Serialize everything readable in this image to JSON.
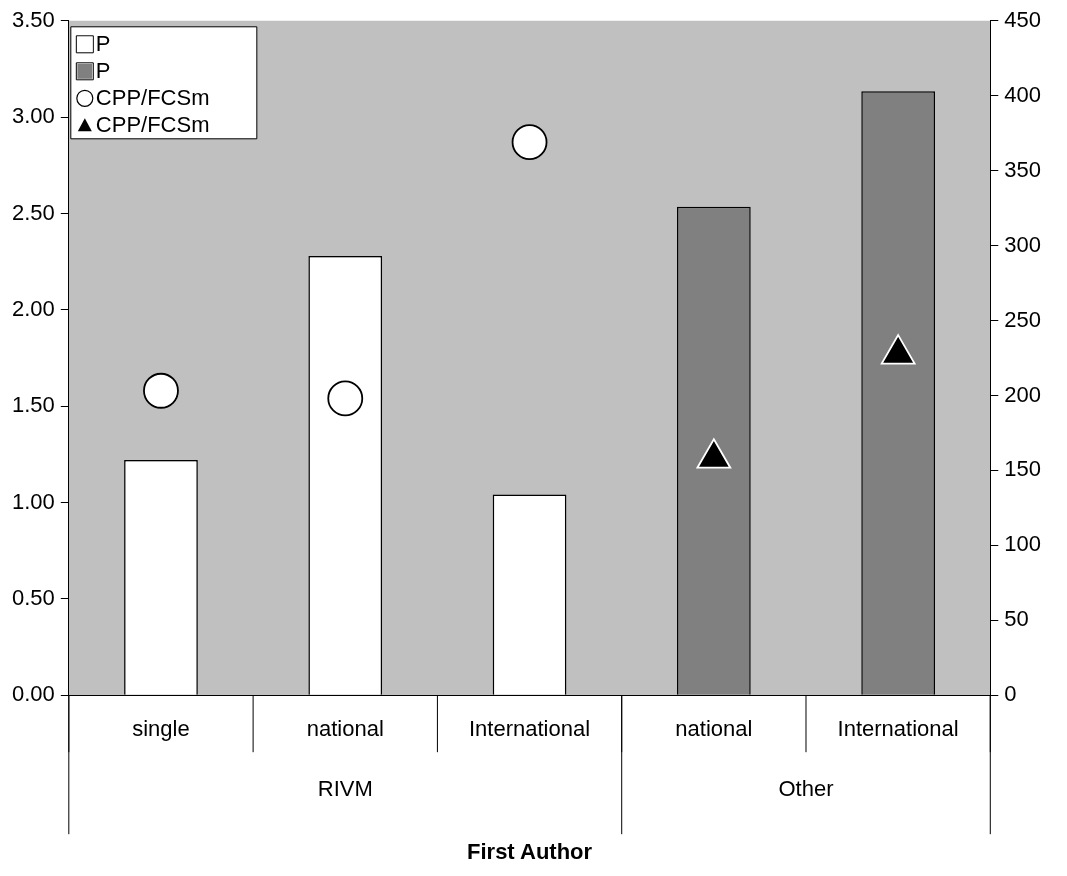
{
  "chart_data": {
    "type": "bar",
    "xlabel": "First Author",
    "categories": [
      "single",
      "national",
      "International",
      "national",
      "International"
    ],
    "annotations": [
      "RIVM",
      "Other"
    ],
    "series": [
      {
        "name": "P",
        "axis": "y2",
        "color": "#ffffff",
        "values": [
          157,
          293,
          134,
          null,
          null
        ]
      },
      {
        "name": "P",
        "axis": "y2",
        "color": "#808080",
        "values": [
          null,
          null,
          null,
          326,
          403
        ]
      },
      {
        "name": "CPP/FCSm",
        "type": "scatter",
        "marker": "circle",
        "color": "#ffffff",
        "values": [
          1.58,
          1.54,
          2.87,
          null,
          null
        ]
      },
      {
        "name": "CPP/FCSm",
        "type": "scatter",
        "marker": "triangle",
        "color": "#000000",
        "values": [
          null,
          null,
          null,
          1.23,
          1.77
        ]
      }
    ],
    "ylim": [
      0,
      3.5
    ],
    "yticks": [
      {
        "value": 0,
        "label": "0.00"
      },
      {
        "value": 0.5,
        "label": "0.50"
      },
      {
        "value": 1,
        "label": "1.00"
      },
      {
        "value": 1.5,
        "label": "1.50"
      },
      {
        "value": 2,
        "label": "2.00"
      },
      {
        "value": 2.5,
        "label": "2.50"
      },
      {
        "value": 3,
        "label": "3.00"
      },
      {
        "value": 3.5,
        "label": "3.50"
      }
    ],
    "y2lim": [
      0,
      450
    ],
    "y2ticks": [
      0,
      50,
      100,
      150,
      200,
      250,
      300,
      350,
      400,
      450
    ],
    "grid": false,
    "legend": "top left"
  }
}
